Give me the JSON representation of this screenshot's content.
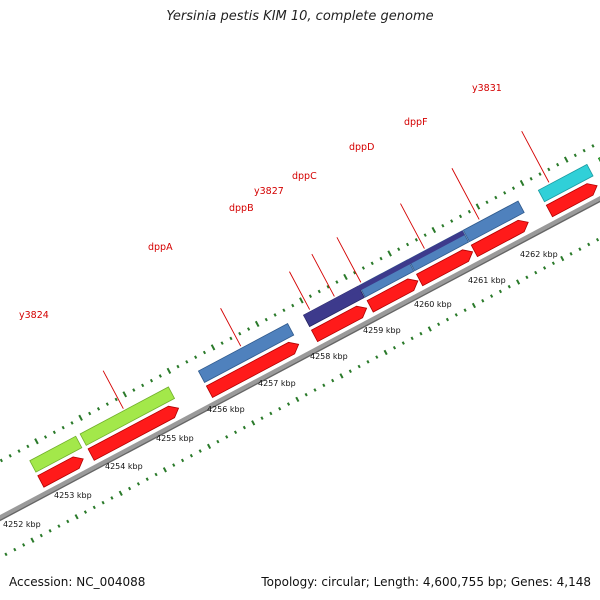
{
  "title": "Yersinia pestis KIM 10, complete genome",
  "footer": {
    "accession": "Accession: NC_004088",
    "stats": "Topology: circular; Length: 4,600,755 bp; Genes: 4,148"
  },
  "colors": {
    "gene_label": "#d40000",
    "cds_red": "#ff1a1a",
    "dpp_blue": "#4f81bd",
    "dpp_purple": "#3d3a8c",
    "y3824_green": "#a3e84a",
    "y3831_cyan": "#30d0d8",
    "right_green": "#3cb43c",
    "backbone": "#9a9a9a",
    "tick_green": "#2a7a2a"
  },
  "axis": {
    "unit": "kbp",
    "tick_labels": [
      "4252 kbp",
      "4253 kbp",
      "4254 kbp",
      "4255 kbp",
      "4256 kbp",
      "4257 kbp",
      "4258 kbp",
      "4259 kbp",
      "4260 kbp",
      "4261 kbp",
      "4262 kbp"
    ]
  },
  "genes": [
    {
      "name": "y3824",
      "label_color": "#d40000"
    },
    {
      "name": "dppA",
      "label_color": "#d40000"
    },
    {
      "name": "dppB",
      "label_color": "#d40000"
    },
    {
      "name": "y3827",
      "label_color": "#d40000"
    },
    {
      "name": "dppC",
      "label_color": "#d40000"
    },
    {
      "name": "dppD",
      "label_color": "#d40000"
    },
    {
      "name": "dppF",
      "label_color": "#d40000"
    },
    {
      "name": "y3831",
      "label_color": "#d40000"
    }
  ]
}
